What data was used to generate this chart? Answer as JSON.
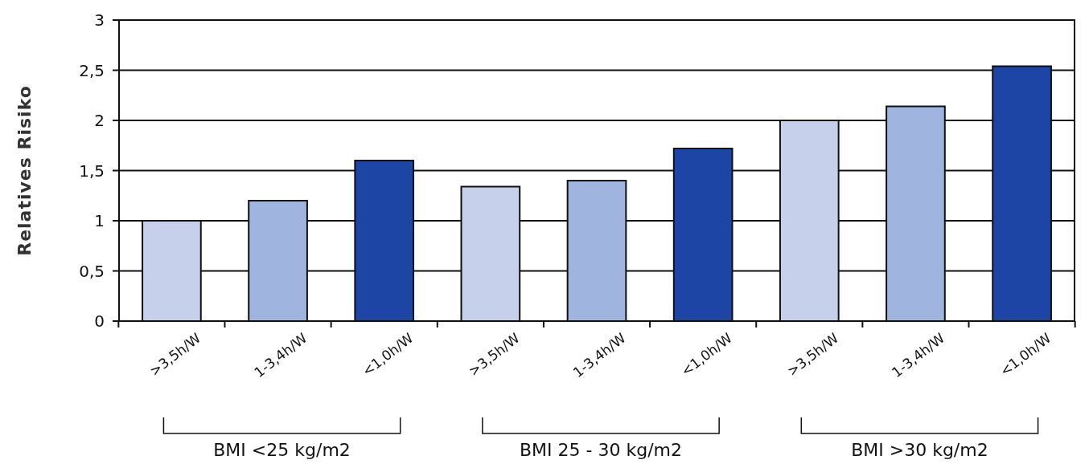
{
  "chart_data": {
    "type": "bar",
    "ylabel": "Relatives Risiko",
    "categories": [
      ">3,5h/W",
      "1-3,4h/W",
      "<1,0h/W",
      ">3,5h/W",
      "1-3,4h/W",
      "<1,0h/W",
      ">3,5h/W",
      "1-3,4h/W",
      "<1,0h/W"
    ],
    "values": [
      1.0,
      1.2,
      1.6,
      1.34,
      1.4,
      1.72,
      2.0,
      2.14,
      2.54
    ],
    "colors": [
      "#c6d0ea",
      "#9fb4de",
      "#1c45a6",
      "#c6d0ea",
      "#9fb4de",
      "#1c45a6",
      "#c6d0ea",
      "#9fb4de",
      "#1c45a6"
    ],
    "ylim": [
      0,
      3
    ],
    "yticks": [
      0,
      {
        "value": 0.5,
        "label": "0,5"
      },
      1,
      {
        "value": 1.5,
        "label": "1,5"
      },
      2,
      {
        "value": 2.5,
        "label": "2,5"
      },
      3
    ],
    "grid": "y",
    "annotations": [
      "BMI <25 kg/m2",
      "BMI 25 - 30 kg/m2",
      "BMI >30 kg/m2"
    ]
  }
}
